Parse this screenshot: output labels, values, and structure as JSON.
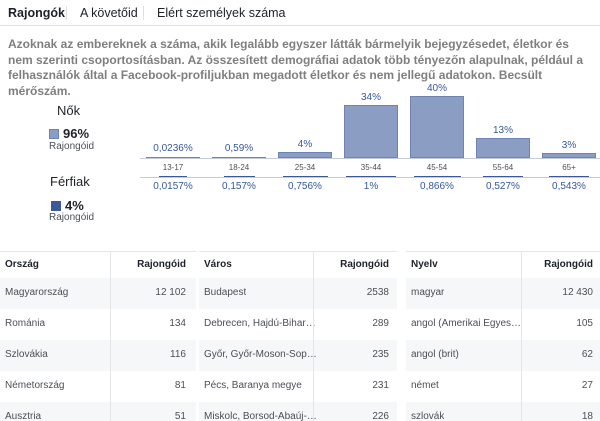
{
  "tabs": [
    "Rajongók",
    "A követőid",
    "Elért személyek száma"
  ],
  "description": "Azoknak az embereknek a száma, akik legalább egyszer látták bármelyik bejegyzésedet, életkor és nem szerinti csoportosításban. Az összesített demográfiai adatok több tényezőn alapulnak, például a felhasználók által a Facebook-profiljukban megadott életkor és nem jellegű adatokon. Becsült mérőszám.",
  "legend": {
    "women": {
      "title": "Nők",
      "percent": "96%",
      "sub": "Rajongóid",
      "color": "#8b9dc3"
    },
    "men": {
      "title": "Férfiak",
      "percent": "4%",
      "sub": "Rajongóid",
      "color": "#3b5998"
    }
  },
  "colors": {
    "bar": "#8b9dc3",
    "bar_border": "#6d84b4",
    "link": "#365899",
    "men": "#3b5998"
  },
  "chart_data": {
    "type": "bar",
    "title": "",
    "categories": [
      "13-17",
      "18-24",
      "25-34",
      "35-44",
      "45-54",
      "55-64",
      "65+"
    ],
    "series": [
      {
        "name": "Nők",
        "values": [
          0.0236,
          0.59,
          4,
          34,
          40,
          13,
          3
        ]
      },
      {
        "name": "Férfiak",
        "values": [
          0.0157,
          0.157,
          0.756,
          1,
          0.866,
          0.527,
          0.543
        ]
      }
    ],
    "top_labels": [
      "",
      "",
      "4%",
      "34%",
      "40%",
      "13%",
      "3%"
    ],
    "women_labels": [
      "0,0236%",
      "0,59%",
      "",
      "",
      "",
      "",
      ""
    ],
    "men_labels": [
      "0,0157%",
      "0,157%",
      "0,756%",
      "1%",
      "0,866%",
      "0,527%",
      "0,543%"
    ],
    "ylim": [
      0,
      40
    ]
  },
  "tables": [
    {
      "headers": [
        "Ország",
        "Rajongóid"
      ],
      "rows": [
        [
          "Magyarország",
          "12 102"
        ],
        [
          "Románia",
          "134"
        ],
        [
          "Szlovákia",
          "116"
        ],
        [
          "Németország",
          "81"
        ],
        [
          "Ausztria",
          "51"
        ]
      ]
    },
    {
      "headers": [
        "Város",
        "Rajongóid"
      ],
      "rows": [
        [
          "Budapest",
          "2538"
        ],
        [
          "Debrecen, Hajdú-Bihar…",
          "289"
        ],
        [
          "Győr, Győr-Moson-Sop…",
          "235"
        ],
        [
          "Pécs, Baranya megye",
          "231"
        ],
        [
          "Miskolc, Borsod-Abaúj-…",
          "226"
        ]
      ]
    },
    {
      "headers": [
        "Nyelv",
        "Rajongóid"
      ],
      "rows": [
        [
          "magyar",
          "12 430"
        ],
        [
          "angol (Amerikai Egyes…",
          "105"
        ],
        [
          "angol (brit)",
          "62"
        ],
        [
          "német",
          "27"
        ],
        [
          "szlovák",
          "18"
        ]
      ]
    }
  ]
}
